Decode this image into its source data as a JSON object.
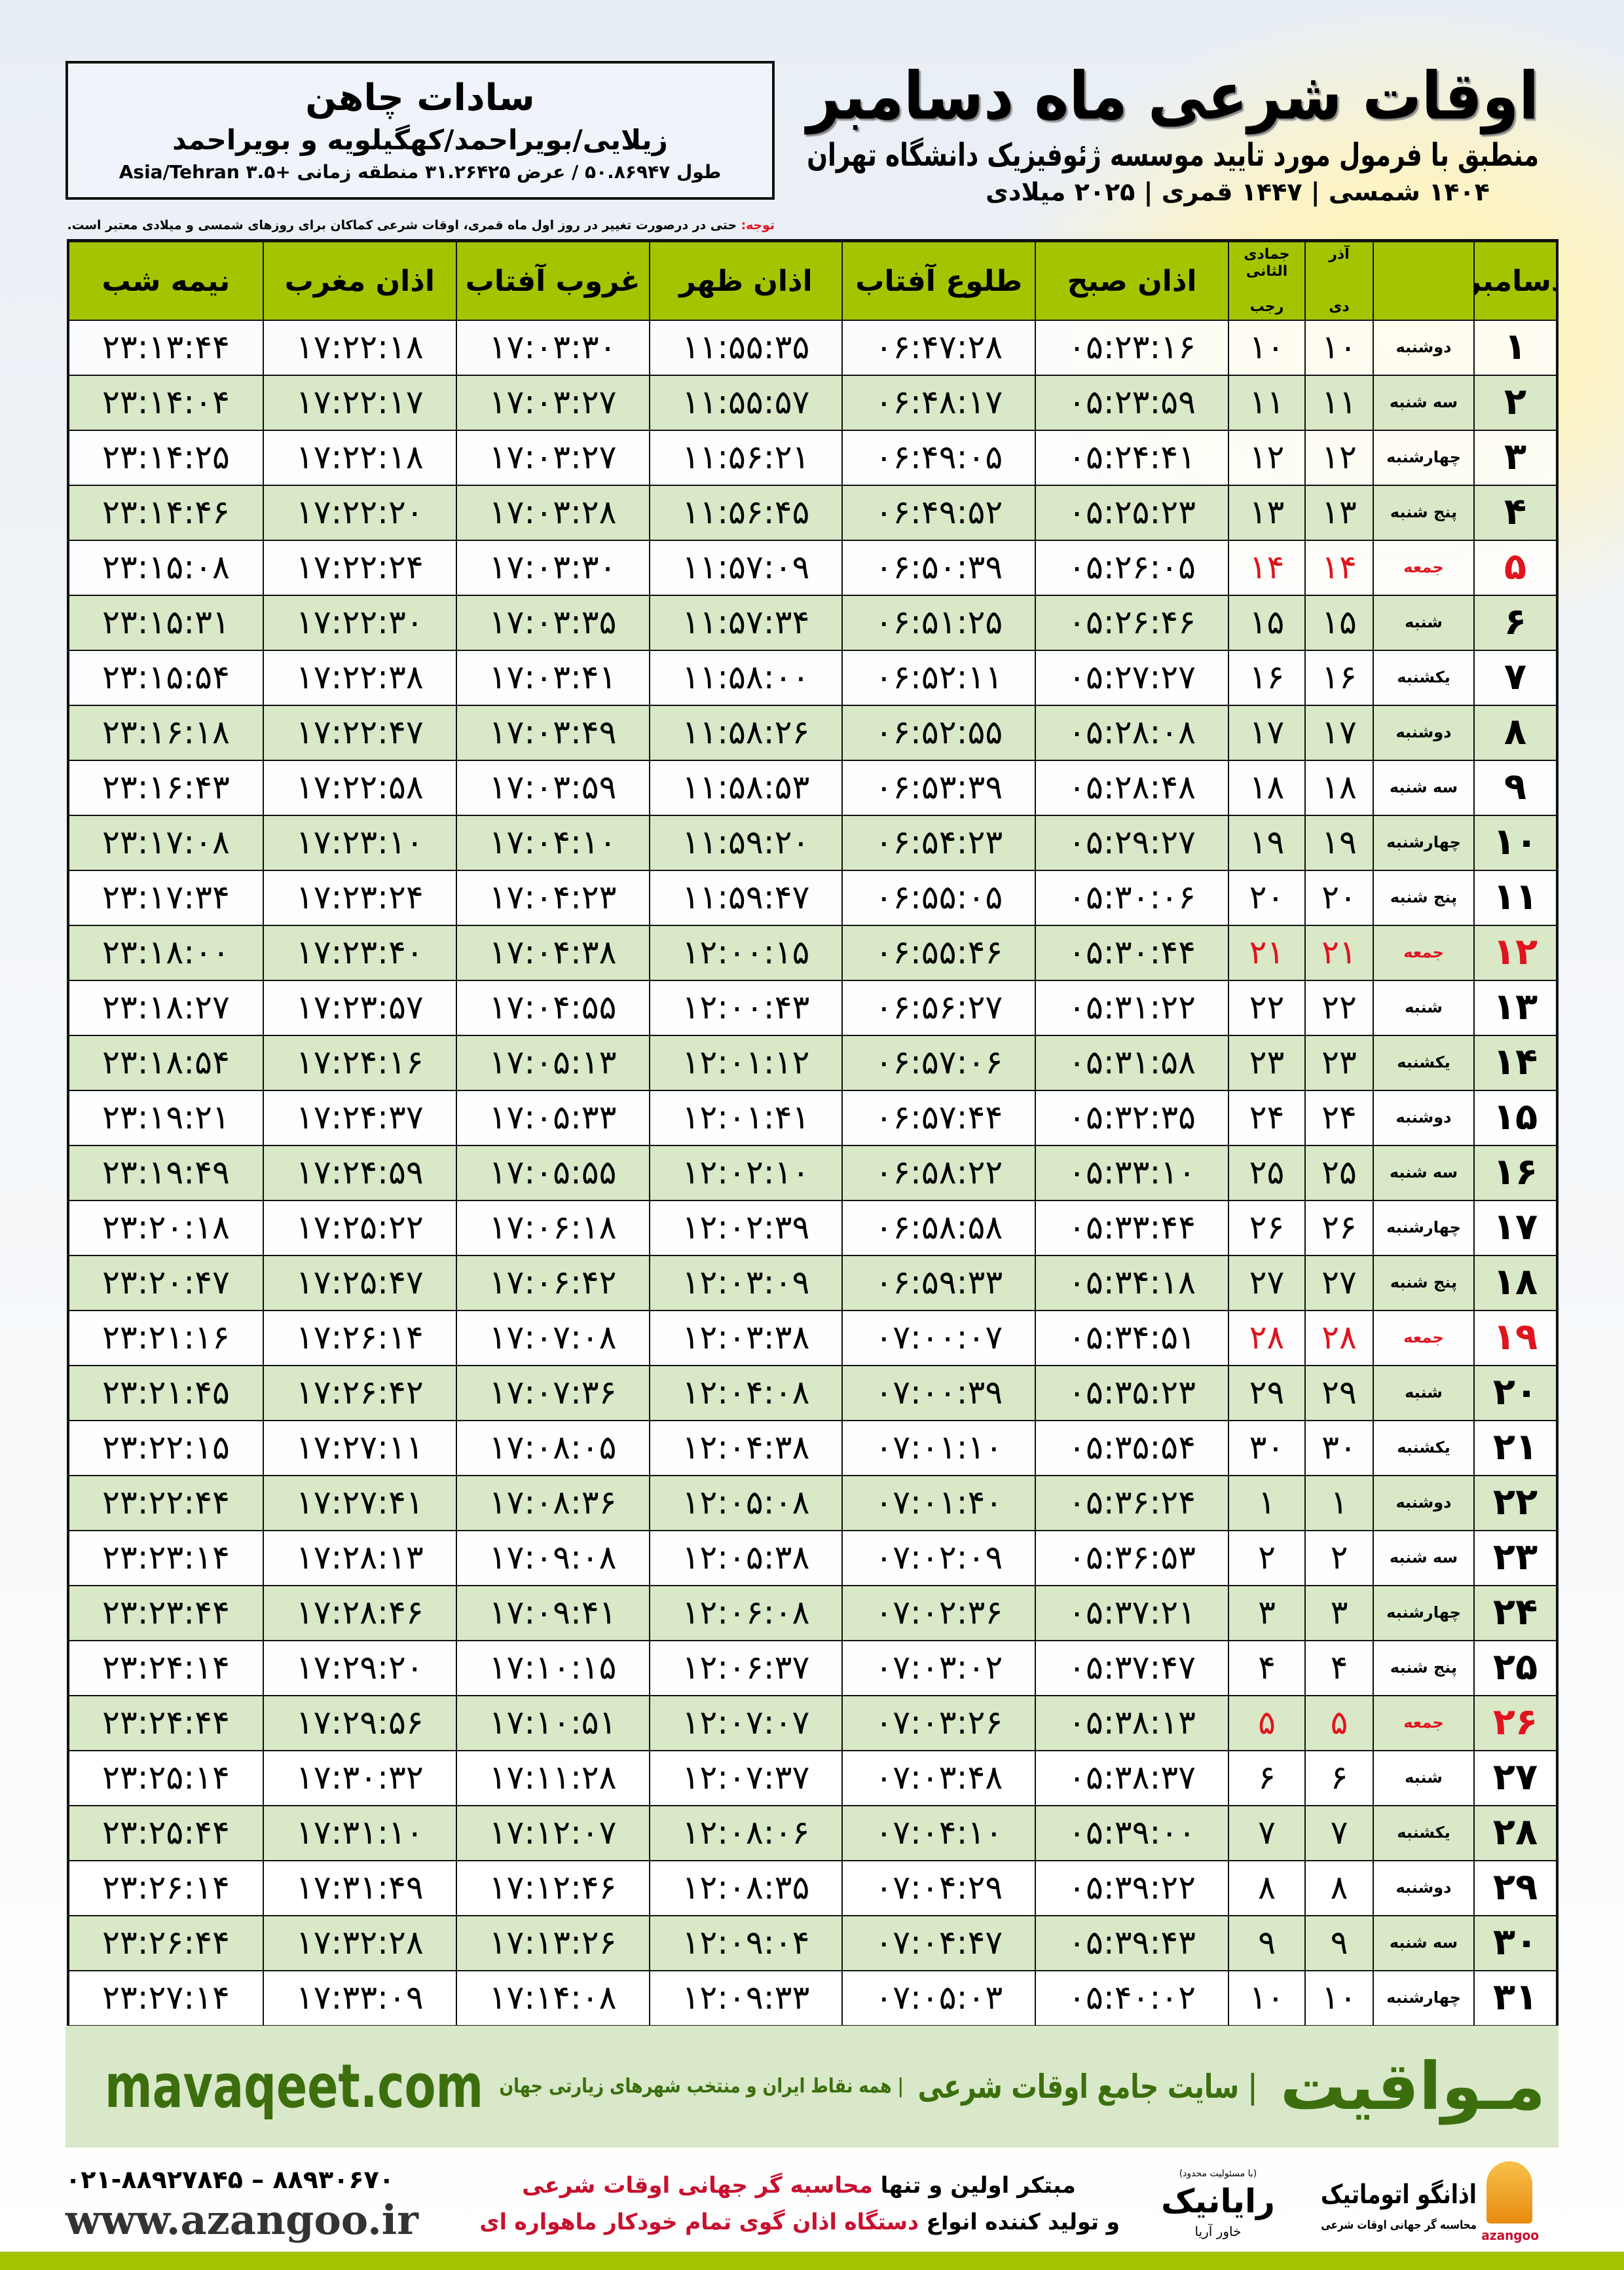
{
  "location": {
    "name": "سادات چاهن",
    "region": "زیلایی/بویراحمد/کهگیلویه و بویراحمد",
    "coords": "طول ۵۰.۸۶۹۴۷ / عرض ۳۱.۲۶۴۲۵ منطقه زمانی +۳.۵ Asia/Tehran"
  },
  "header": {
    "title": "اوقات شرعی ماه دسامبر",
    "subtitle": "منطبق با فرمول مورد تایید موسسه ژئوفیزیک دانشگاه تهران",
    "years": "۱۴۰۴ شمسی | ۱۴۴۷ قمری | ۲۰۲۵ میلادی"
  },
  "note": {
    "label": "توجه:",
    "text": " حتی در درصورت تغییر در روز اول ماه قمری، اوقات شرعی کماکان برای روزهای شمسی و میلادی معتبر است."
  },
  "columns": {
    "day": "دسامبر",
    "shamsi_top": "آذر",
    "shamsi_bottom": "دی",
    "hijri_top": "جمادی الثانی",
    "hijri_bottom": "رجب",
    "sobh": "اذان صبح",
    "tolu": "طلوع آفتاب",
    "zohr": "اذان ظهر",
    "ghorub": "غروب آفتاب",
    "maghrib": "اذان مغرب",
    "nimeshab": "نیمه شب"
  },
  "colors": {
    "header_green": "#a5c400",
    "row_green": "#d9e8c7",
    "friday_red": "#e0141e",
    "brand_green": "#3c6e0e"
  },
  "rows": [
    [
      "۱",
      "دوشنبه",
      "۱۰",
      "۱۰",
      "۰۵:۲۳:۱۶",
      "۰۶:۴۷:۲۸",
      "۱۱:۵۵:۳۵",
      "۱۷:۰۳:۳۰",
      "۱۷:۲۲:۱۸",
      "۲۳:۱۳:۴۴",
      false
    ],
    [
      "۲",
      "سه شنبه",
      "۱۱",
      "۱۱",
      "۰۵:۲۳:۵۹",
      "۰۶:۴۸:۱۷",
      "۱۱:۵۵:۵۷",
      "۱۷:۰۳:۲۷",
      "۱۷:۲۲:۱۷",
      "۲۳:۱۴:۰۴",
      false
    ],
    [
      "۳",
      "چهارشنبه",
      "۱۲",
      "۱۲",
      "۰۵:۲۴:۴۱",
      "۰۶:۴۹:۰۵",
      "۱۱:۵۶:۲۱",
      "۱۷:۰۳:۲۷",
      "۱۷:۲۲:۱۸",
      "۲۳:۱۴:۲۵",
      false
    ],
    [
      "۴",
      "پنج شنبه",
      "۱۳",
      "۱۳",
      "۰۵:۲۵:۲۳",
      "۰۶:۴۹:۵۲",
      "۱۱:۵۶:۴۵",
      "۱۷:۰۳:۲۸",
      "۱۷:۲۲:۲۰",
      "۲۳:۱۴:۴۶",
      false
    ],
    [
      "۵",
      "جمعه",
      "۱۴",
      "۱۴",
      "۰۵:۲۶:۰۵",
      "۰۶:۵۰:۳۹",
      "۱۱:۵۷:۰۹",
      "۱۷:۰۳:۳۰",
      "۱۷:۲۲:۲۴",
      "۲۳:۱۵:۰۸",
      true
    ],
    [
      "۶",
      "شنبه",
      "۱۵",
      "۱۵",
      "۰۵:۲۶:۴۶",
      "۰۶:۵۱:۲۵",
      "۱۱:۵۷:۳۴",
      "۱۷:۰۳:۳۵",
      "۱۷:۲۲:۳۰",
      "۲۳:۱۵:۳۱",
      false
    ],
    [
      "۷",
      "یکشنبه",
      "۱۶",
      "۱۶",
      "۰۵:۲۷:۲۷",
      "۰۶:۵۲:۱۱",
      "۱۱:۵۸:۰۰",
      "۱۷:۰۳:۴۱",
      "۱۷:۲۲:۳۸",
      "۲۳:۱۵:۵۴",
      false
    ],
    [
      "۸",
      "دوشنبه",
      "۱۷",
      "۱۷",
      "۰۵:۲۸:۰۸",
      "۰۶:۵۲:۵۵",
      "۱۱:۵۸:۲۶",
      "۱۷:۰۳:۴۹",
      "۱۷:۲۲:۴۷",
      "۲۳:۱۶:۱۸",
      false
    ],
    [
      "۹",
      "سه شنبه",
      "۱۸",
      "۱۸",
      "۰۵:۲۸:۴۸",
      "۰۶:۵۳:۳۹",
      "۱۱:۵۸:۵۳",
      "۱۷:۰۳:۵۹",
      "۱۷:۲۲:۵۸",
      "۲۳:۱۶:۴۳",
      false
    ],
    [
      "۱۰",
      "چهارشنبه",
      "۱۹",
      "۱۹",
      "۰۵:۲۹:۲۷",
      "۰۶:۵۴:۲۳",
      "۱۱:۵۹:۲۰",
      "۱۷:۰۴:۱۰",
      "۱۷:۲۳:۱۰",
      "۲۳:۱۷:۰۸",
      false
    ],
    [
      "۱۱",
      "پنج شنبه",
      "۲۰",
      "۲۰",
      "۰۵:۳۰:۰۶",
      "۰۶:۵۵:۰۵",
      "۱۱:۵۹:۴۷",
      "۱۷:۰۴:۲۳",
      "۱۷:۲۳:۲۴",
      "۲۳:۱۷:۳۴",
      false
    ],
    [
      "۱۲",
      "جمعه",
      "۲۱",
      "۲۱",
      "۰۵:۳۰:۴۴",
      "۰۶:۵۵:۴۶",
      "۱۲:۰۰:۱۵",
      "۱۷:۰۴:۳۸",
      "۱۷:۲۳:۴۰",
      "۲۳:۱۸:۰۰",
      true
    ],
    [
      "۱۳",
      "شنبه",
      "۲۲",
      "۲۲",
      "۰۵:۳۱:۲۲",
      "۰۶:۵۶:۲۷",
      "۱۲:۰۰:۴۳",
      "۱۷:۰۴:۵۵",
      "۱۷:۲۳:۵۷",
      "۲۳:۱۸:۲۷",
      false
    ],
    [
      "۱۴",
      "یکشنبه",
      "۲۳",
      "۲۳",
      "۰۵:۳۱:۵۸",
      "۰۶:۵۷:۰۶",
      "۱۲:۰۱:۱۲",
      "۱۷:۰۵:۱۳",
      "۱۷:۲۴:۱۶",
      "۲۳:۱۸:۵۴",
      false
    ],
    [
      "۱۵",
      "دوشنبه",
      "۲۴",
      "۲۴",
      "۰۵:۳۲:۳۵",
      "۰۶:۵۷:۴۴",
      "۱۲:۰۱:۴۱",
      "۱۷:۰۵:۳۳",
      "۱۷:۲۴:۳۷",
      "۲۳:۱۹:۲۱",
      false
    ],
    [
      "۱۶",
      "سه شنبه",
      "۲۵",
      "۲۵",
      "۰۵:۳۳:۱۰",
      "۰۶:۵۸:۲۲",
      "۱۲:۰۲:۱۰",
      "۱۷:۰۵:۵۵",
      "۱۷:۲۴:۵۹",
      "۲۳:۱۹:۴۹",
      false
    ],
    [
      "۱۷",
      "چهارشنبه",
      "۲۶",
      "۲۶",
      "۰۵:۳۳:۴۴",
      "۰۶:۵۸:۵۸",
      "۱۲:۰۲:۳۹",
      "۱۷:۰۶:۱۸",
      "۱۷:۲۵:۲۲",
      "۲۳:۲۰:۱۸",
      false
    ],
    [
      "۱۸",
      "پنج شنبه",
      "۲۷",
      "۲۷",
      "۰۵:۳۴:۱۸",
      "۰۶:۵۹:۳۳",
      "۱۲:۰۳:۰۹",
      "۱۷:۰۶:۴۲",
      "۱۷:۲۵:۴۷",
      "۲۳:۲۰:۴۷",
      false
    ],
    [
      "۱۹",
      "جمعه",
      "۲۸",
      "۲۸",
      "۰۵:۳۴:۵۱",
      "۰۷:۰۰:۰۷",
      "۱۲:۰۳:۳۸",
      "۱۷:۰۷:۰۸",
      "۱۷:۲۶:۱۴",
      "۲۳:۲۱:۱۶",
      true
    ],
    [
      "۲۰",
      "شنبه",
      "۲۹",
      "۲۹",
      "۰۵:۳۵:۲۳",
      "۰۷:۰۰:۳۹",
      "۱۲:۰۴:۰۸",
      "۱۷:۰۷:۳۶",
      "۱۷:۲۶:۴۲",
      "۲۳:۲۱:۴۵",
      false
    ],
    [
      "۲۱",
      "یکشنبه",
      "۳۰",
      "۳۰",
      "۰۵:۳۵:۵۴",
      "۰۷:۰۱:۱۰",
      "۱۲:۰۴:۳۸",
      "۱۷:۰۸:۰۵",
      "۱۷:۲۷:۱۱",
      "۲۳:۲۲:۱۵",
      false
    ],
    [
      "۲۲",
      "دوشنبه",
      "۱",
      "۱",
      "۰۵:۳۶:۲۴",
      "۰۷:۰۱:۴۰",
      "۱۲:۰۵:۰۸",
      "۱۷:۰۸:۳۶",
      "۱۷:۲۷:۴۱",
      "۲۳:۲۲:۴۴",
      false
    ],
    [
      "۲۳",
      "سه شنبه",
      "۲",
      "۲",
      "۰۵:۳۶:۵۳",
      "۰۷:۰۲:۰۹",
      "۱۲:۰۵:۳۸",
      "۱۷:۰۹:۰۸",
      "۱۷:۲۸:۱۳",
      "۲۳:۲۳:۱۴",
      false
    ],
    [
      "۲۴",
      "چهارشنبه",
      "۳",
      "۳",
      "۰۵:۳۷:۲۱",
      "۰۷:۰۲:۳۶",
      "۱۲:۰۶:۰۸",
      "۱۷:۰۹:۴۱",
      "۱۷:۲۸:۴۶",
      "۲۳:۲۳:۴۴",
      false
    ],
    [
      "۲۵",
      "پنج شنبه",
      "۴",
      "۴",
      "۰۵:۳۷:۴۷",
      "۰۷:۰۳:۰۲",
      "۱۲:۰۶:۳۷",
      "۱۷:۱۰:۱۵",
      "۱۷:۲۹:۲۰",
      "۲۳:۲۴:۱۴",
      false
    ],
    [
      "۲۶",
      "جمعه",
      "۵",
      "۵",
      "۰۵:۳۸:۱۳",
      "۰۷:۰۳:۲۶",
      "۱۲:۰۷:۰۷",
      "۱۷:۱۰:۵۱",
      "۱۷:۲۹:۵۶",
      "۲۳:۲۴:۴۴",
      true
    ],
    [
      "۲۷",
      "شنبه",
      "۶",
      "۶",
      "۰۵:۳۸:۳۷",
      "۰۷:۰۳:۴۸",
      "۱۲:۰۷:۳۷",
      "۱۷:۱۱:۲۸",
      "۱۷:۳۰:۳۲",
      "۲۳:۲۵:۱۴",
      false
    ],
    [
      "۲۸",
      "یکشنبه",
      "۷",
      "۷",
      "۰۵:۳۹:۰۰",
      "۰۷:۰۴:۱۰",
      "۱۲:۰۸:۰۶",
      "۱۷:۱۲:۰۷",
      "۱۷:۳۱:۱۰",
      "۲۳:۲۵:۴۴",
      false
    ],
    [
      "۲۹",
      "دوشنبه",
      "۸",
      "۸",
      "۰۵:۳۹:۲۲",
      "۰۷:۰۴:۲۹",
      "۱۲:۰۸:۳۵",
      "۱۷:۱۲:۴۶",
      "۱۷:۳۱:۴۹",
      "۲۳:۲۶:۱۴",
      false
    ],
    [
      "۳۰",
      "سه شنبه",
      "۹",
      "۹",
      "۰۵:۳۹:۴۳",
      "۰۷:۰۴:۴۷",
      "۱۲:۰۹:۰۴",
      "۱۷:۱۳:۲۶",
      "۱۷:۳۲:۲۸",
      "۲۳:۲۶:۴۴",
      false
    ],
    [
      "۳۱",
      "چهارشنبه",
      "۱۰",
      "۱۰",
      "۰۵:۴۰:۰۲",
      "۰۷:۰۵:۰۳",
      "۱۲:۰۹:۳۳",
      "۱۷:۱۴:۰۸",
      "۱۷:۳۳:۰۹",
      "۲۳:۲۷:۱۴",
      false
    ]
  ],
  "footer": {
    "brand": "مـواقیت",
    "tagline": "| سایت جامع اوقات شرعی",
    "tag_sub": "| همه نقاط ایران و منتخب شهرهای زیارتی جهان",
    "site": "mavaqeet.com"
  },
  "promo": {
    "line1_a": "مبتکر اولین و تنها ",
    "line1_b": "محاسبه گر جهانی اوقات شرعی",
    "line2_a": "و تولید کننده انواع ",
    "line2_b": "دستگاه اذان گوی تمام خودکار ماهواره ای",
    "phones": "۰۲۱-۸۸۹۲۷۸۴۵ – ۸۸۹۳۰۶۷۰",
    "web": "www.azangoo.ir"
  },
  "logos": {
    "raya_small": "(با مسئولیت محدود)",
    "raya_name": "رایانیک",
    "raya_sub": "خاور آریا",
    "azan_name": "اذانگو اتوماتیک",
    "azan_sub": "محاسبه گر جهانی اوقات شرعی",
    "azan_en": "azangoo"
  }
}
